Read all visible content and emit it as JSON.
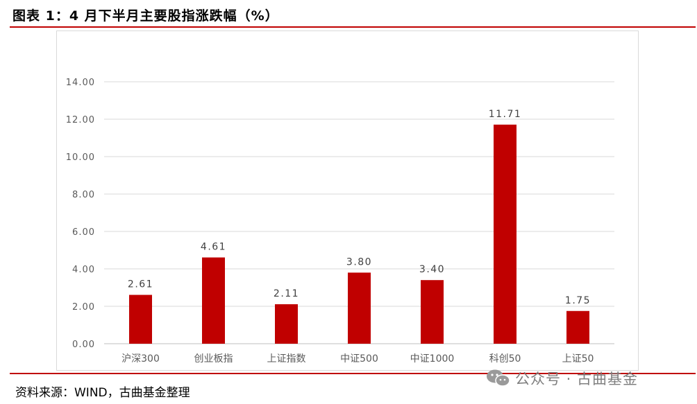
{
  "figure": {
    "title": "图表 1：4 月下半月主要股指涨跌幅（%）",
    "source": "资料来源：WIND，古曲基金整理",
    "watermark": "公众号 · 古曲基金",
    "watermark_icon": "wechat-icon",
    "accent_color": "#c00000",
    "bar_color": "#c00000"
  },
  "chart_data": {
    "type": "bar",
    "categories": [
      "沪深300",
      "创业板指",
      "上证指数",
      "中证500",
      "中证1000",
      "科创50",
      "上证50"
    ],
    "values": [
      2.61,
      4.61,
      2.11,
      3.8,
      3.4,
      11.71,
      1.75
    ],
    "data_labels": [
      "2.61",
      "4.61",
      "2.11",
      "3.80",
      "3.40",
      "11.71",
      "1.75"
    ],
    "title": "",
    "xlabel": "",
    "ylabel": "",
    "ylim": [
      0,
      14
    ],
    "yticks": [
      0,
      2,
      4,
      6,
      8,
      10,
      12,
      14
    ],
    "ytick_labels": [
      "0.00",
      "2.00",
      "4.00",
      "6.00",
      "8.00",
      "10.00",
      "12.00",
      "14.00"
    ],
    "grid": true,
    "legend": "none"
  }
}
